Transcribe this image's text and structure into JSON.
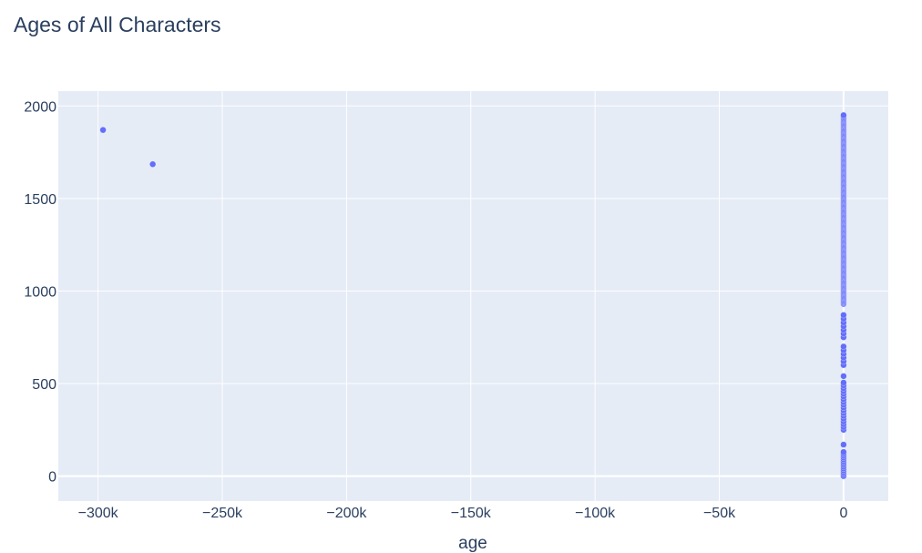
{
  "chart_data": {
    "type": "scatter",
    "title": "Ages of All Characters",
    "xlabel": "age",
    "ylabel": "",
    "xlim": [
      -316000,
      18000
    ],
    "ylim": [
      -135,
      2080
    ],
    "grid": true,
    "legend": "none",
    "x_ticks": [
      -300000,
      -250000,
      -200000,
      -150000,
      -100000,
      -50000,
      0
    ],
    "x_tick_labels": [
      "−300k",
      "−250k",
      "−200k",
      "−150k",
      "−100k",
      "−50k",
      "0"
    ],
    "y_ticks": [
      0,
      500,
      1000,
      1500,
      2000
    ],
    "y_tick_labels": [
      "0",
      "500",
      "1000",
      "1500",
      "2000"
    ],
    "colors": {
      "marker": "#636efa",
      "plot_background": "#e5ecf6",
      "grid": "#ffffff",
      "text": "#2a3f5f"
    },
    "outliers": [
      {
        "x": -298000,
        "y": 1870
      },
      {
        "x": -278000,
        "y": 1685
      }
    ],
    "column": {
      "x": 0,
      "y_ranges": [
        [
          930,
          1950
        ],
        [
          250,
          930
        ],
        [
          0,
          250
        ]
      ],
      "y_points": [
        0,
        10,
        20,
        30,
        40,
        50,
        60,
        70,
        80,
        90,
        100,
        110,
        120,
        130,
        170,
        250,
        265,
        280,
        295,
        310,
        325,
        340,
        355,
        370,
        385,
        400,
        415,
        430,
        445,
        460,
        475,
        490,
        505,
        540,
        600,
        620,
        640,
        660,
        680,
        700,
        750,
        770,
        790,
        810,
        830,
        850,
        870
      ]
    }
  }
}
